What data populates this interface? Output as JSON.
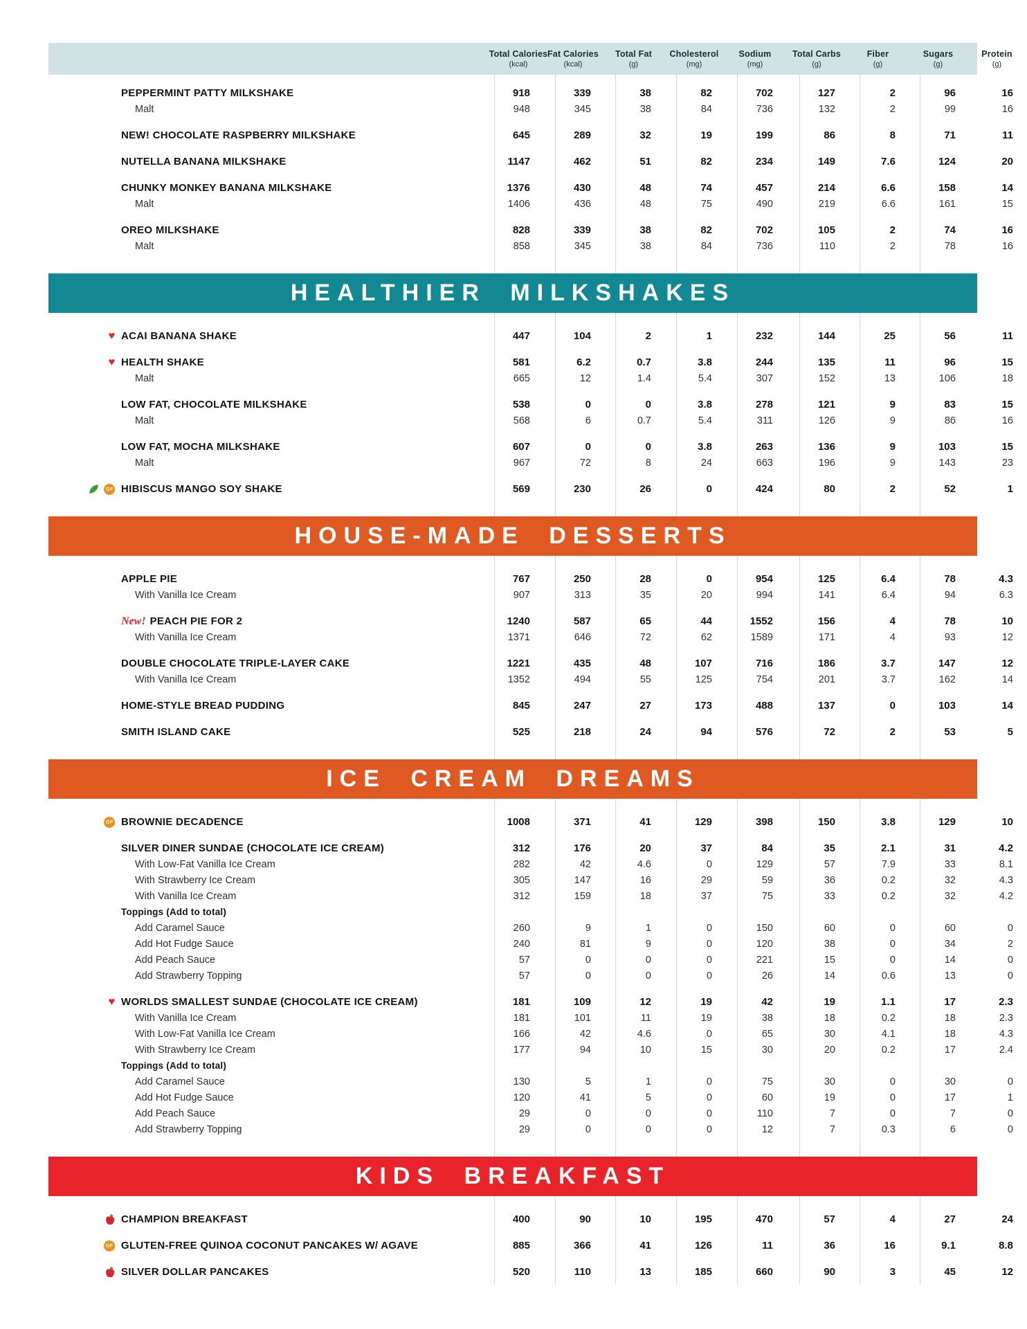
{
  "colors": {
    "header_band_bg": "#d2e2e3",
    "teal_banner": "#118892",
    "orange_banner": "#df5a23",
    "red_banner": "#e8232a",
    "heart_icon": "#e8232a",
    "gf_icon_bg": "#ef8f1d",
    "leaf_icon": "#44a13f",
    "column_divider": "#cbdde0"
  },
  "columns": [
    {
      "label": "Total Calories",
      "unit": "(kcal)"
    },
    {
      "label": "Fat Calories",
      "unit": "(kcal)"
    },
    {
      "label": "Total Fat",
      "unit": "(g)"
    },
    {
      "label": "Cholesterol",
      "unit": "(mg)"
    },
    {
      "label": "Sodium",
      "unit": "(mg)"
    },
    {
      "label": "Total Carbs",
      "unit": "(g)"
    },
    {
      "label": "Fiber",
      "unit": "(g)"
    },
    {
      "label": "Sugars",
      "unit": "(g)"
    },
    {
      "label": "Protein",
      "unit": "(g)"
    }
  ],
  "sections": [
    {
      "type": "rows",
      "rows": [
        {
          "style": "main",
          "gap": true,
          "name": "PEPPERMINT PATTY MILKSHAKE",
          "values": [
            "918",
            "339",
            "38",
            "82",
            "702",
            "127",
            "2",
            "96",
            "16"
          ]
        },
        {
          "style": "sub",
          "name": "Malt",
          "values": [
            "948",
            "345",
            "38",
            "84",
            "736",
            "132",
            "2",
            "99",
            "16"
          ]
        },
        {
          "style": "main",
          "gap": true,
          "name": "NEW! CHOCOLATE RASPBERRY MILKSHAKE",
          "values": [
            "645",
            "289",
            "32",
            "19",
            "199",
            "86",
            "8",
            "71",
            "11"
          ]
        },
        {
          "style": "main",
          "gap": true,
          "name": "NUTELLA BANANA MILKSHAKE",
          "values": [
            "1147",
            "462",
            "51",
            "82",
            "234",
            "149",
            "7.6",
            "124",
            "20"
          ]
        },
        {
          "style": "main",
          "gap": true,
          "name": "CHUNKY MONKEY BANANA MILKSHAKE",
          "values": [
            "1376",
            "430",
            "48",
            "74",
            "457",
            "214",
            "6.6",
            "158",
            "14"
          ]
        },
        {
          "style": "sub",
          "name": "Malt",
          "values": [
            "1406",
            "436",
            "48",
            "75",
            "490",
            "219",
            "6.6",
            "161",
            "15"
          ]
        },
        {
          "style": "main",
          "gap": true,
          "name": "OREO MILKSHAKE",
          "values": [
            "828",
            "339",
            "38",
            "82",
            "702",
            "105",
            "2",
            "74",
            "16"
          ]
        },
        {
          "style": "sub",
          "name": "Malt",
          "values": [
            "858",
            "345",
            "38",
            "84",
            "736",
            "110",
            "2",
            "78",
            "16"
          ]
        }
      ]
    },
    {
      "type": "banner",
      "label": "HEALTHIER MILKSHAKES",
      "color": "#118892"
    },
    {
      "type": "rows",
      "rows": [
        {
          "style": "main",
          "icons": [
            "heart"
          ],
          "name": "ACAI BANANA SHAKE",
          "values": [
            "447",
            "104",
            "2",
            "1",
            "232",
            "144",
            "25",
            "56",
            "11"
          ]
        },
        {
          "style": "main",
          "gap": true,
          "icons": [
            "heart"
          ],
          "name": "HEALTH SHAKE",
          "values": [
            "581",
            "6.2",
            "0.7",
            "3.8",
            "244",
            "135",
            "11",
            "96",
            "15"
          ]
        },
        {
          "style": "sub",
          "name": "Malt",
          "values": [
            "665",
            "12",
            "1.4",
            "5.4",
            "307",
            "152",
            "13",
            "106",
            "18"
          ]
        },
        {
          "style": "main",
          "gap": true,
          "name": "LOW FAT, CHOCOLATE MILKSHAKE",
          "values": [
            "538",
            "0",
            "0",
            "3.8",
            "278",
            "121",
            "9",
            "83",
            "15"
          ]
        },
        {
          "style": "sub",
          "name": "Malt",
          "values": [
            "568",
            "6",
            "0.7",
            "5.4",
            "311",
            "126",
            "9",
            "86",
            "16"
          ]
        },
        {
          "style": "main",
          "gap": true,
          "name": "LOW FAT, MOCHA MILKSHAKE",
          "values": [
            "607",
            "0",
            "0",
            "3.8",
            "263",
            "136",
            "9",
            "103",
            "15"
          ]
        },
        {
          "style": "sub",
          "name": "Malt",
          "values": [
            "967",
            "72",
            "8",
            "24",
            "663",
            "196",
            "9",
            "143",
            "23"
          ]
        },
        {
          "style": "main",
          "gap": true,
          "icons": [
            "leaf",
            "gf"
          ],
          "name": "HIBISCUS MANGO SOY SHAKE",
          "values": [
            "569",
            "230",
            "26",
            "0",
            "424",
            "80",
            "2",
            "52",
            "1"
          ]
        }
      ]
    },
    {
      "type": "banner",
      "label": "HOUSE-MADE DESSERTS",
      "color": "#df5a23"
    },
    {
      "type": "rows",
      "rows": [
        {
          "style": "main",
          "name": "APPLE PIE",
          "values": [
            "767",
            "250",
            "28",
            "0",
            "954",
            "125",
            "6.4",
            "78",
            "4.3"
          ]
        },
        {
          "style": "sub",
          "name": "With Vanilla Ice Cream",
          "values": [
            "907",
            "313",
            "35",
            "20",
            "994",
            "141",
            "6.4",
            "94",
            "6.3"
          ]
        },
        {
          "style": "main",
          "gap": true,
          "prefix": "New!",
          "name": "PEACH PIE FOR 2",
          "values": [
            "1240",
            "587",
            "65",
            "44",
            "1552",
            "156",
            "4",
            "78",
            "10"
          ]
        },
        {
          "style": "sub",
          "name": "With Vanilla Ice Cream",
          "values": [
            "1371",
            "646",
            "72",
            "62",
            "1589",
            "171",
            "4",
            "93",
            "12"
          ]
        },
        {
          "style": "main",
          "gap": true,
          "name": "DOUBLE CHOCOLATE TRIPLE-LAYER CAKE",
          "values": [
            "1221",
            "435",
            "48",
            "107",
            "716",
            "186",
            "3.7",
            "147",
            "12"
          ]
        },
        {
          "style": "sub",
          "name": "With Vanilla Ice Cream",
          "values": [
            "1352",
            "494",
            "55",
            "125",
            "754",
            "201",
            "3.7",
            "162",
            "14"
          ]
        },
        {
          "style": "main",
          "gap": true,
          "name": "HOME-STYLE BREAD PUDDING",
          "values": [
            "845",
            "247",
            "27",
            "173",
            "488",
            "137",
            "0",
            "103",
            "14"
          ]
        },
        {
          "style": "main",
          "gap": true,
          "name": "SMITH ISLAND CAKE",
          "values": [
            "525",
            "218",
            "24",
            "94",
            "576",
            "72",
            "2",
            "53",
            "5"
          ]
        }
      ]
    },
    {
      "type": "banner",
      "label": "ICE CREAM DREAMS",
      "color": "#df5a23"
    },
    {
      "type": "rows",
      "rows": [
        {
          "style": "main",
          "icons": [
            "gf"
          ],
          "name": "BROWNIE DECADENCE",
          "values": [
            "1008",
            "371",
            "41",
            "129",
            "398",
            "150",
            "3.8",
            "129",
            "10"
          ]
        },
        {
          "style": "main",
          "gap": true,
          "name": "SILVER DINER SUNDAE (CHOCOLATE ICE CREAM)",
          "values": [
            "312",
            "176",
            "20",
            "37",
            "84",
            "35",
            "2.1",
            "31",
            "4.2"
          ]
        },
        {
          "style": "sub",
          "name": "With Low-Fat Vanilla Ice Cream",
          "values": [
            "282",
            "42",
            "4.6",
            "0",
            "129",
            "57",
            "7.9",
            "33",
            "8.1"
          ]
        },
        {
          "style": "sub",
          "name": "With Strawberry Ice Cream",
          "values": [
            "305",
            "147",
            "16",
            "29",
            "59",
            "36",
            "0.2",
            "32",
            "4.3"
          ]
        },
        {
          "style": "sub",
          "name": "With Vanilla Ice Cream",
          "values": [
            "312",
            "159",
            "18",
            "37",
            "75",
            "33",
            "0.2",
            "32",
            "4.2"
          ]
        },
        {
          "style": "subhead",
          "name": "Toppings (Add to total)",
          "values": []
        },
        {
          "style": "sub",
          "name": "Add Caramel Sauce",
          "values": [
            "260",
            "9",
            "1",
            "0",
            "150",
            "60",
            "0",
            "60",
            "0"
          ]
        },
        {
          "style": "sub",
          "name": "Add Hot Fudge Sauce",
          "values": [
            "240",
            "81",
            "9",
            "0",
            "120",
            "38",
            "0",
            "34",
            "2"
          ]
        },
        {
          "style": "sub",
          "name": "Add Peach Sauce",
          "values": [
            "57",
            "0",
            "0",
            "0",
            "221",
            "15",
            "0",
            "14",
            "0"
          ]
        },
        {
          "style": "sub",
          "name": "Add Strawberry Topping",
          "values": [
            "57",
            "0",
            "0",
            "0",
            "26",
            "14",
            "0.6",
            "13",
            "0"
          ]
        },
        {
          "style": "main",
          "gap": true,
          "icons": [
            "heart"
          ],
          "name": "WORLDS SMALLEST SUNDAE (CHOCOLATE ICE CREAM)",
          "values": [
            "181",
            "109",
            "12",
            "19",
            "42",
            "19",
            "1.1",
            "17",
            "2.3"
          ]
        },
        {
          "style": "sub",
          "name": "With Vanilla Ice Cream",
          "values": [
            "181",
            "101",
            "11",
            "19",
            "38",
            "18",
            "0.2",
            "18",
            "2.3"
          ]
        },
        {
          "style": "sub",
          "name": "With Low-Fat Vanilla Ice Cream",
          "values": [
            "166",
            "42",
            "4.6",
            "0",
            "65",
            "30",
            "4.1",
            "18",
            "4.3"
          ]
        },
        {
          "style": "sub",
          "name": "With Strawberry Ice Cream",
          "values": [
            "177",
            "94",
            "10",
            "15",
            "30",
            "20",
            "0.2",
            "17",
            "2.4"
          ]
        },
        {
          "style": "subhead",
          "name": "Toppings (Add to total)",
          "values": []
        },
        {
          "style": "sub",
          "name": "Add Caramel Sauce",
          "values": [
            "130",
            "5",
            "1",
            "0",
            "75",
            "30",
            "0",
            "30",
            "0"
          ]
        },
        {
          "style": "sub",
          "name": "Add Hot Fudge Sauce",
          "values": [
            "120",
            "41",
            "5",
            "0",
            "60",
            "19",
            "0",
            "17",
            "1"
          ]
        },
        {
          "style": "sub",
          "name": "Add Peach Sauce",
          "values": [
            "29",
            "0",
            "0",
            "0",
            "110",
            "7",
            "0",
            "7",
            "0"
          ]
        },
        {
          "style": "sub",
          "name": "Add Strawberry Topping",
          "values": [
            "29",
            "0",
            "0",
            "0",
            "12",
            "7",
            "0.3",
            "6",
            "0"
          ]
        }
      ]
    },
    {
      "type": "banner",
      "label": "KIDS BREAKFAST",
      "color": "#e8232a"
    },
    {
      "type": "rows",
      "rows": [
        {
          "style": "main",
          "icons": [
            "apple"
          ],
          "name": "CHAMPION BREAKFAST",
          "values": [
            "400",
            "90",
            "10",
            "195",
            "470",
            "57",
            "4",
            "27",
            "24"
          ]
        },
        {
          "style": "main",
          "gap": true,
          "icons": [
            "gf"
          ],
          "name": "GLUTEN-FREE QUINOA COCONUT PANCAKES W/ AGAVE",
          "values": [
            "885",
            "366",
            "41",
            "126",
            "11",
            "36",
            "16",
            "9.1",
            "8.8"
          ]
        },
        {
          "style": "main",
          "gap": true,
          "icons": [
            "apple"
          ],
          "name": "SILVER DOLLAR PANCAKES",
          "values": [
            "520",
            "110",
            "13",
            "185",
            "660",
            "90",
            "3",
            "45",
            "12"
          ]
        }
      ]
    }
  ]
}
